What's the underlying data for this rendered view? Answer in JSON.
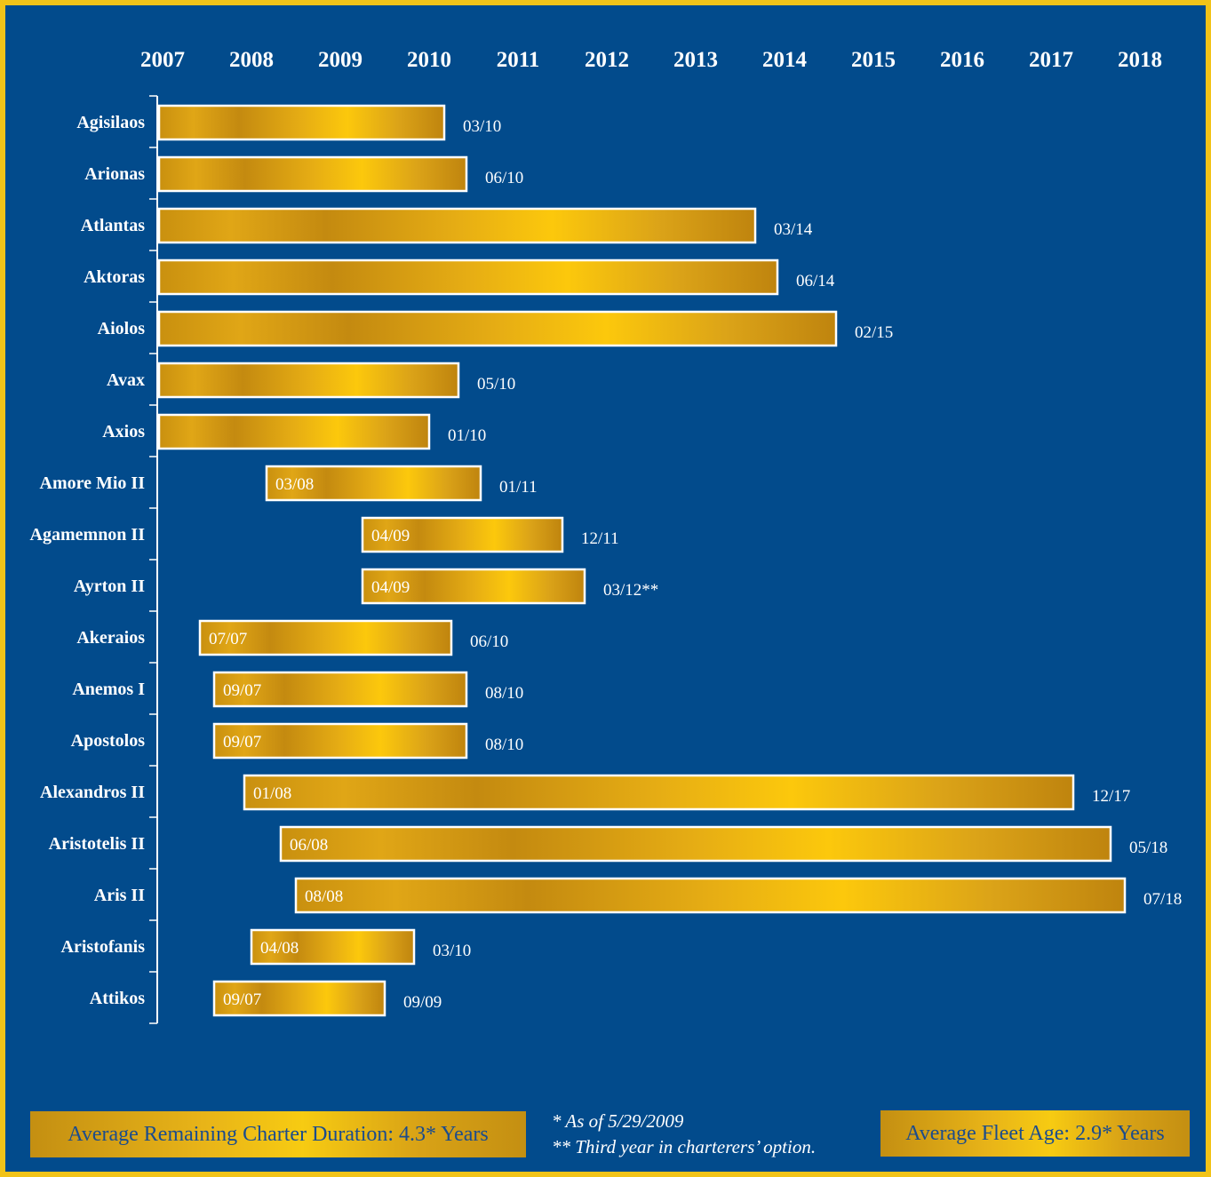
{
  "chart_data": {
    "type": "gantt",
    "x_axis": {
      "ticks": [
        "2007",
        "2008",
        "2009",
        "2010",
        "2011",
        "2012",
        "2013",
        "2014",
        "2015",
        "2016",
        "2017",
        "2018"
      ]
    },
    "rows": [
      {
        "vessel": "Agisilaos",
        "start": null,
        "end": "03/10",
        "end_value": 2010.17
      },
      {
        "vessel": "Arionas",
        "start": null,
        "end": "06/10",
        "end_value": 2010.42
      },
      {
        "vessel": "Atlantas",
        "start": null,
        "end": "03/14",
        "end_value": 2013.67
      },
      {
        "vessel": "Aktoras",
        "start": null,
        "end": "06/14",
        "end_value": 2013.92
      },
      {
        "vessel": "Aiolos",
        "start": null,
        "end": "02/15",
        "end_value": 2014.58
      },
      {
        "vessel": "Avax",
        "start": null,
        "end": "05/10",
        "end_value": 2010.33
      },
      {
        "vessel": "Axios",
        "start": null,
        "end": "01/10",
        "end_value": 2010.0
      },
      {
        "vessel": "Amore Mio II",
        "start": "03/08",
        "start_value": 2008.17,
        "end": "01/11",
        "end_value": 2010.58
      },
      {
        "vessel": "Agamemnon II",
        "start": "04/09",
        "start_value": 2009.25,
        "end": "12/11",
        "end_value": 2011.5
      },
      {
        "vessel": "Ayrton II",
        "start": "04/09",
        "start_value": 2009.25,
        "end": "03/12**",
        "end_value": 2011.75
      },
      {
        "vessel": "Akeraios",
        "start": "07/07",
        "start_value": 2007.42,
        "end": "06/10",
        "end_value": 2010.25
      },
      {
        "vessel": "Anemos I",
        "start": "09/07",
        "start_value": 2007.58,
        "end": "08/10",
        "end_value": 2010.42
      },
      {
        "vessel": "Apostolos",
        "start": "09/07",
        "start_value": 2007.58,
        "end": "08/10",
        "end_value": 2010.42
      },
      {
        "vessel": "Alexandros II",
        "start": "01/08",
        "start_value": 2007.92,
        "end": "12/17",
        "end_value": 2017.25
      },
      {
        "vessel": "Aristotelis II",
        "start": "06/08",
        "start_value": 2008.33,
        "end": "05/18",
        "end_value": 2017.67
      },
      {
        "vessel": "Aris II",
        "start": "08/08",
        "start_value": 2008.5,
        "end": "07/18",
        "end_value": 2017.83
      },
      {
        "vessel": "Aristofanis",
        "start": "04/08",
        "start_value": 2008.0,
        "end": "03/10",
        "end_value": 2009.83
      },
      {
        "vessel": "Attikos",
        "start": "09/07",
        "start_value": 2007.58,
        "end": "09/09",
        "end_value": 2009.5
      }
    ]
  },
  "footer": {
    "avg_duration": "Average Remaining Charter Duration: 4.3* Years",
    "avg_age": "Average Fleet Age: 2.9* Years",
    "footnote_1": "*   As of 5/29/2009",
    "footnote_2": "** Third year in charterers’ option."
  },
  "colors": {
    "background": "#024b8c",
    "border": "#f2c318",
    "bar_gold_dark": "#c0840e",
    "bar_gold_light": "#fcc80c",
    "bar_outline": "#ffffff",
    "text": "#ffffff",
    "footer_text": "#1b4c8d"
  }
}
